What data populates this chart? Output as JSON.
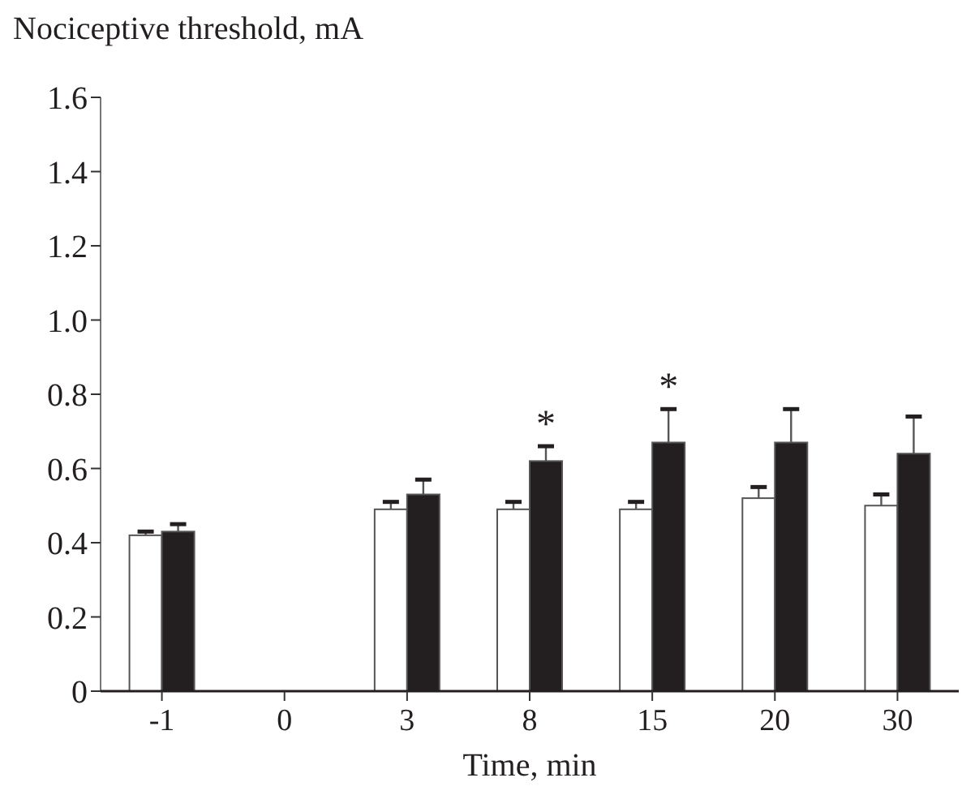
{
  "chart_data": {
    "type": "bar",
    "ylabel": "Nociceptive threshold, mA",
    "xlabel": "Time, min",
    "categories": [
      "-1",
      "0",
      "3",
      "8",
      "15",
      "20",
      "30"
    ],
    "series": [
      {
        "color": "#ffffff",
        "values": [
          0.42,
          null,
          0.49,
          0.49,
          0.49,
          0.52,
          0.5
        ],
        "errors": [
          0.01,
          null,
          0.02,
          0.02,
          0.02,
          0.03,
          0.03
        ]
      },
      {
        "color": "#231f20",
        "values": [
          0.43,
          null,
          0.53,
          0.62,
          0.67,
          0.67,
          0.64
        ],
        "errors": [
          0.02,
          null,
          0.04,
          0.04,
          0.09,
          0.09,
          0.1
        ]
      }
    ],
    "ylim": [
      0,
      1.6
    ],
    "yticks": [
      0,
      {
        "value": 0.2,
        "label": "0.2"
      },
      {
        "value": 0.4,
        "label": "0.4"
      },
      {
        "value": 0.6,
        "label": "0.6"
      },
      {
        "value": 0.8,
        "label": "0.8"
      },
      {
        "value": 1.0,
        "label": "1.0"
      },
      {
        "value": 1.2,
        "label": "1.2"
      },
      {
        "value": 1.4,
        "label": "1.4"
      },
      {
        "value": 1.6,
        "label": "1.6"
      }
    ],
    "annotations": [
      {
        "text": "*",
        "x": "8",
        "y": 0.66
      },
      {
        "text": "*",
        "x": "15",
        "y": 0.76
      }
    ]
  }
}
